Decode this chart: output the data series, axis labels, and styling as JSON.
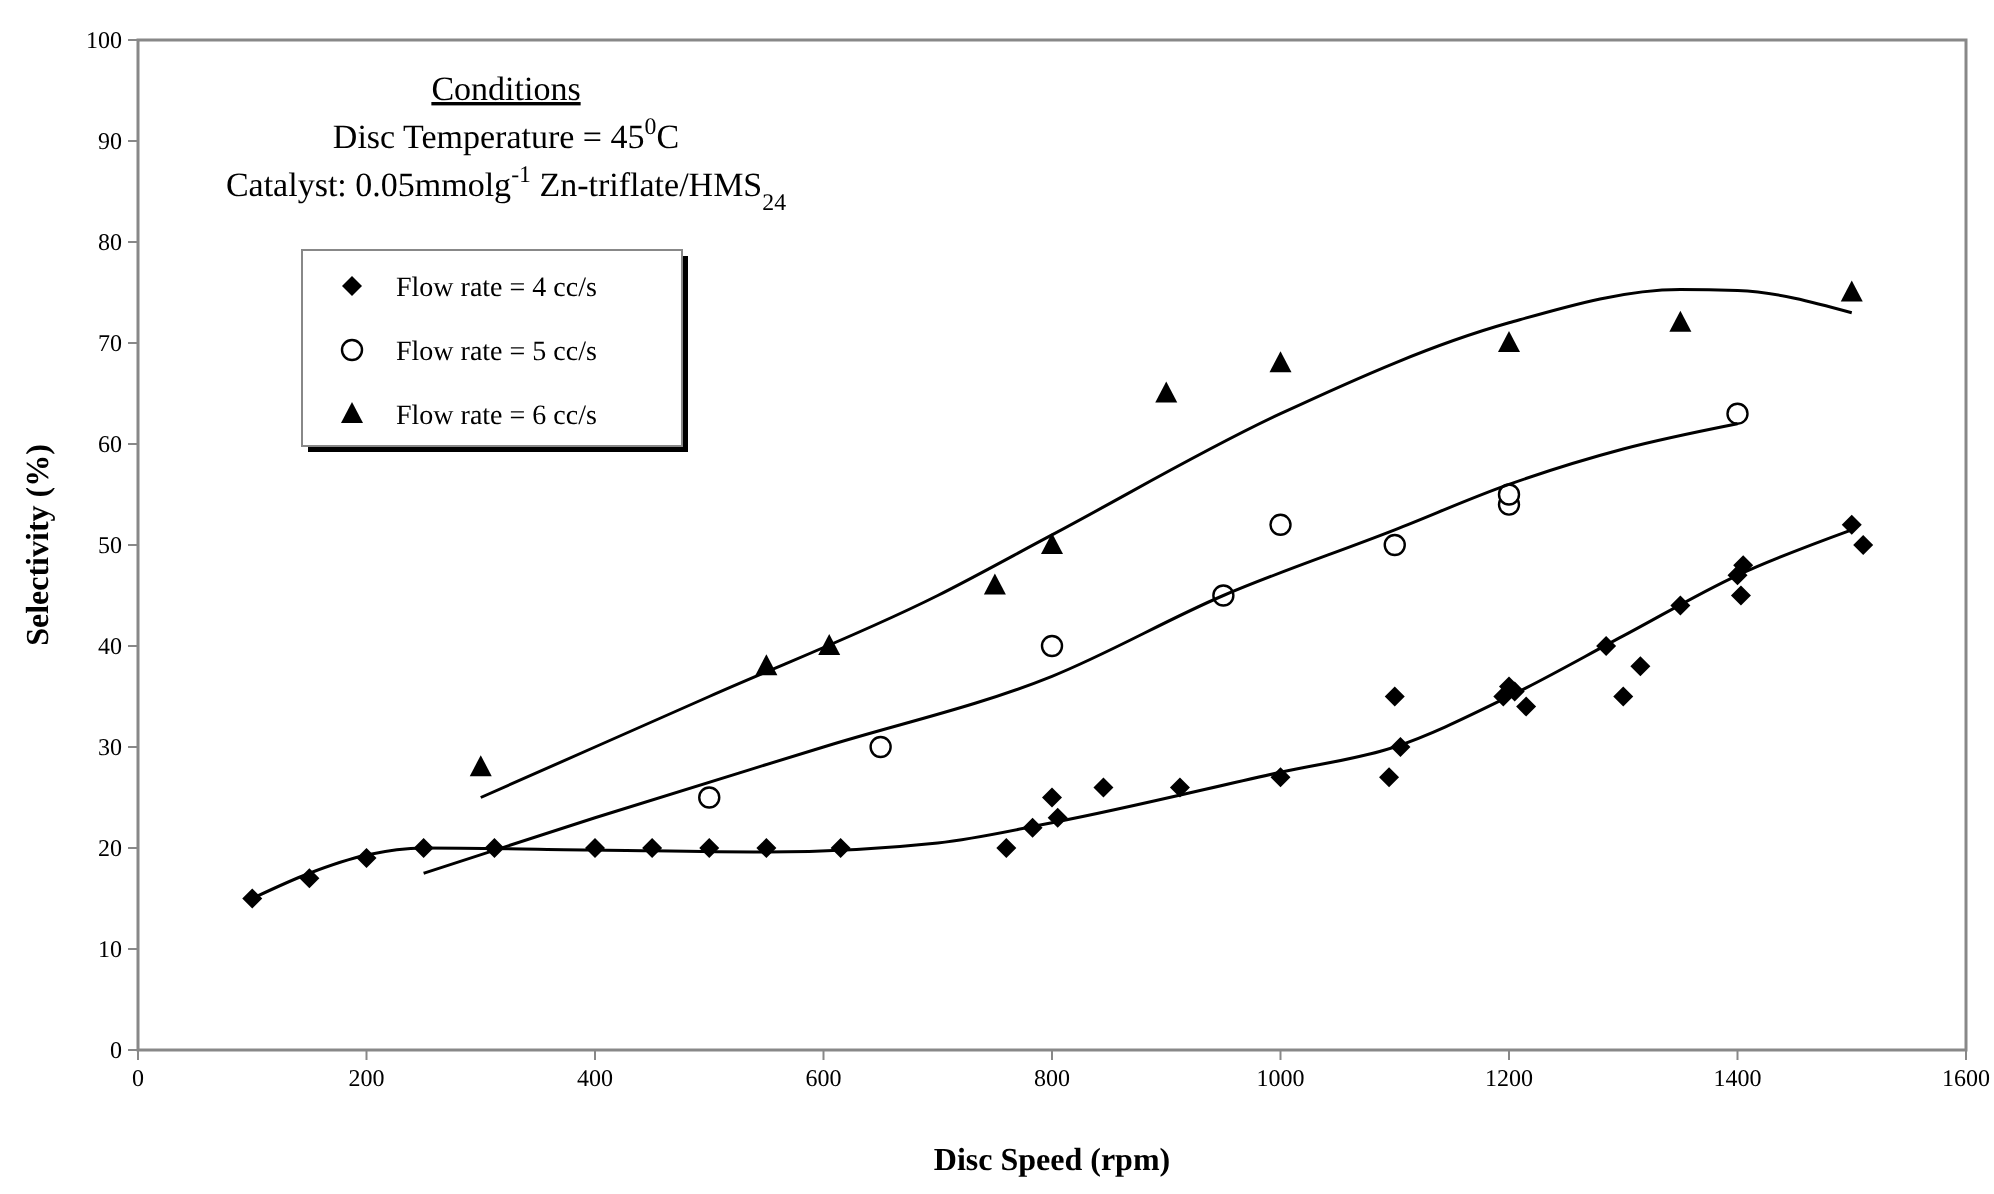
{
  "chart_data": {
    "type": "scatter",
    "xlabel": "Disc Speed (rpm)",
    "ylabel": "Selectivity (%)",
    "annotations": [
      "Conditions",
      "Disc Temperature = 45$^{0}$C",
      "Catalyst: 0.05mmolg$^{-1}$ Zn-triflate/HMS$_{24}$"
    ],
    "xlim": [
      0,
      1600
    ],
    "xticks": [
      0,
      200,
      400,
      600,
      800,
      1000,
      1200,
      1400,
      1600
    ],
    "ylim": [
      0,
      100
    ],
    "yticks": [
      0,
      10,
      20,
      30,
      40,
      50,
      60,
      70,
      80,
      90,
      100
    ],
    "grid": false,
    "legend": "top left",
    "series": [
      {
        "name": "Flow rate = 4 cc/s",
        "marker": "diamond",
        "color": "#000000",
        "x": [
          100,
          150,
          200,
          250,
          312,
          400,
          450,
          500,
          550,
          615,
          760,
          783,
          800,
          805,
          845,
          912,
          1000,
          1095,
          1100,
          1105,
          1195,
          1200,
          1205,
          1215,
          1285,
          1300,
          1315,
          1350,
          1400,
          1403,
          1405,
          1500,
          1510
        ],
        "values": [
          15,
          17,
          19,
          20,
          20,
          20,
          20,
          20,
          20,
          20,
          20,
          22,
          25,
          23,
          26,
          26,
          27,
          27,
          35,
          30,
          35,
          36,
          35.5,
          34,
          40,
          35,
          38,
          44,
          47,
          45,
          48,
          52,
          50
        ]
      },
      {
        "name": "Flow rate = 5 cc/s",
        "marker": "circle",
        "color": "#000000",
        "x": [
          500,
          650,
          800,
          950,
          1000,
          1100,
          1200,
          1200,
          1400
        ],
        "values": [
          25,
          30,
          40,
          45,
          52,
          50,
          54,
          55,
          63
        ]
      },
      {
        "name": "Flow rate = 6 cc/s",
        "marker": "triangle",
        "color": "#000000",
        "x": [
          300,
          550,
          605,
          750,
          800,
          900,
          1000,
          1200,
          1350,
          1500
        ],
        "values": [
          28,
          38,
          40,
          46,
          50,
          65,
          68,
          70,
          72,
          75
        ]
      },
      {
        "type": "line",
        "marker": "none",
        "color": "#000000",
        "x": [
          100,
          150,
          200,
          250,
          400,
          550,
          700,
          800,
          1000,
          1100,
          1200,
          1300,
          1400,
          1500
        ],
        "values": [
          15,
          17.5,
          19.3,
          20,
          19.8,
          19.6,
          20.5,
          22.5,
          27.5,
          30,
          35,
          41,
          47,
          51.5
        ]
      },
      {
        "type": "line",
        "marker": "none",
        "color": "#000000",
        "x": [
          250,
          400,
          600,
          800,
          950,
          1100,
          1200,
          1300,
          1400
        ],
        "values": [
          17.5,
          23,
          30,
          37,
          45,
          51.5,
          56,
          59.5,
          62
        ]
      },
      {
        "type": "line",
        "marker": "none",
        "color": "#000000",
        "x": [
          300,
          500,
          700,
          800,
          1000,
          1200,
          1350,
          1400,
          1500
        ],
        "values": [
          25,
          35,
          45,
          51,
          63,
          72,
          75.3,
          75.2,
          73
        ]
      }
    ]
  }
}
